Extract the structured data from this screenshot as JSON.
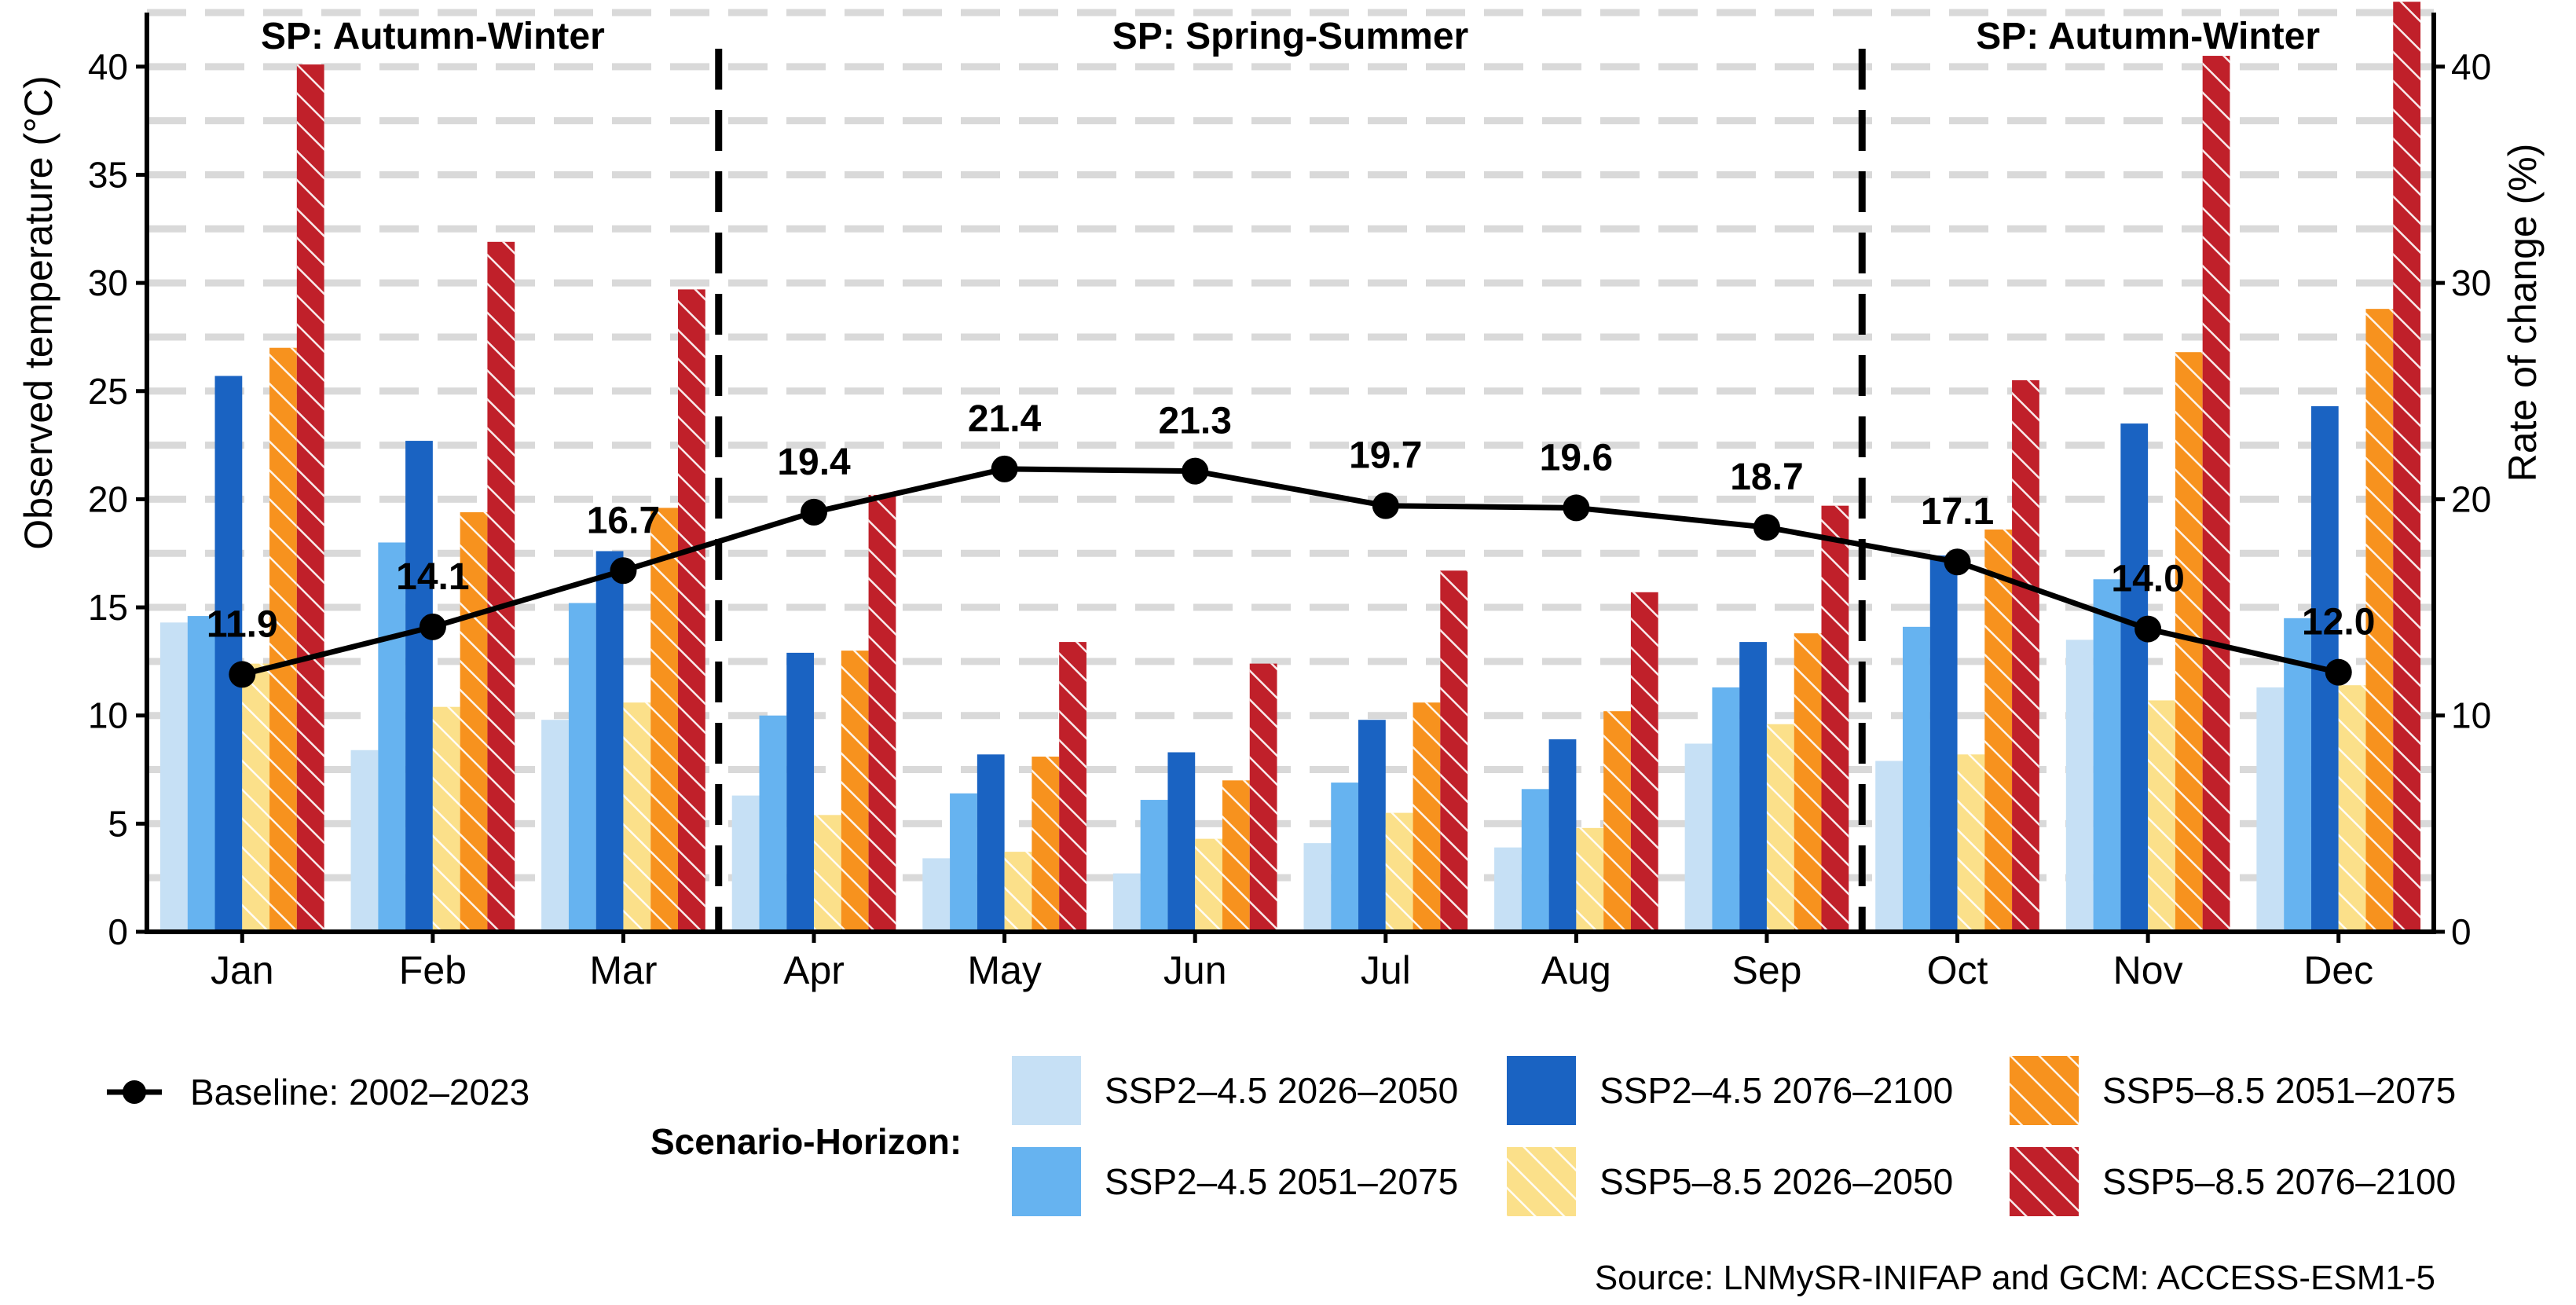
{
  "chart_data": {
    "type": "bar",
    "categories": [
      "Jan",
      "Feb",
      "Mar",
      "Apr",
      "May",
      "Jun",
      "Jul",
      "Aug",
      "Sep",
      "Oct",
      "Nov",
      "Dec"
    ],
    "y_left": {
      "label": "Observed temperature (°C)",
      "ticks": [
        0,
        5,
        10,
        15,
        20,
        25,
        30,
        35,
        40
      ],
      "range": [
        0,
        42.5
      ]
    },
    "y_right": {
      "label": "Rate of change (%)",
      "ticks": [
        0,
        10,
        20,
        30,
        40
      ],
      "range": [
        0,
        42.5
      ]
    },
    "grid": "dashed horizontal",
    "season_labels": [
      {
        "text": "SP: Autumn-Winter",
        "span": [
          "Jan",
          "Mar"
        ]
      },
      {
        "text": "SP: Spring-Summer",
        "span": [
          "Apr",
          "Sep"
        ]
      },
      {
        "text": "SP: Autumn-Winter",
        "span": [
          "Oct",
          "Dec"
        ]
      }
    ],
    "season_dividers_after": [
      "Mar",
      "Sep"
    ],
    "series": [
      {
        "name": "SSP2–4.5 2026–2050",
        "color": "#c6e0f5",
        "hatch": false,
        "axis": "right",
        "values": [
          14.3,
          8.4,
          9.8,
          6.3,
          3.4,
          2.7,
          4.1,
          3.9,
          8.7,
          7.9,
          13.5,
          11.3
        ]
      },
      {
        "name": "SSP2–4.5 2051–2075",
        "color": "#66b3f0",
        "hatch": false,
        "axis": "right",
        "values": [
          14.6,
          18.0,
          15.2,
          10.0,
          6.4,
          6.1,
          6.9,
          6.6,
          11.3,
          14.1,
          16.3,
          14.5
        ]
      },
      {
        "name": "SSP2–4.5 2076–2100",
        "color": "#1a63c2",
        "hatch": false,
        "axis": "right",
        "values": [
          25.7,
          22.7,
          17.6,
          12.9,
          8.2,
          8.3,
          9.8,
          8.9,
          13.4,
          17.4,
          23.5,
          24.3
        ]
      },
      {
        "name": "SSP5–8.5 2026–2050",
        "color": "#fbe08a",
        "hatch": true,
        "axis": "right",
        "values": [
          12.4,
          10.4,
          10.6,
          5.4,
          3.7,
          4.3,
          5.5,
          4.8,
          9.6,
          8.2,
          10.7,
          11.4
        ]
      },
      {
        "name": "SSP5–8.5 2051–2075",
        "color": "#f7921e",
        "hatch": true,
        "axis": "right",
        "values": [
          27.0,
          19.4,
          19.6,
          13.0,
          8.1,
          7.0,
          10.6,
          10.2,
          13.8,
          18.6,
          26.8,
          28.8
        ]
      },
      {
        "name": "SSP5–8.5 2076–2100",
        "color": "#c0202a",
        "hatch": true,
        "axis": "right",
        "values": [
          40.1,
          31.9,
          29.7,
          20.2,
          13.4,
          12.4,
          16.7,
          15.7,
          19.7,
          25.5,
          40.5,
          43.0
        ]
      }
    ],
    "line": {
      "name": "Baseline: 2002–2023",
      "axis": "left",
      "color": "#000000",
      "values": [
        11.9,
        14.1,
        16.7,
        19.4,
        21.4,
        21.3,
        19.7,
        19.6,
        18.7,
        17.1,
        14.0,
        12.0
      ],
      "labels": [
        "11.9",
        "14.1",
        "16.7",
        "19.4",
        "21.4",
        "21.3",
        "19.7",
        "19.6",
        "18.7",
        "17.1",
        "14.0",
        "12.0"
      ]
    },
    "legend": {
      "line_label": "Baseline: 2002–2023",
      "title": "Scenario-Horizon:",
      "items": [
        "SSP2–4.5 2026–2050",
        "SSP2–4.5 2051–2075",
        "SSP2–4.5 2076–2100",
        "SSP5–8.5 2026–2050",
        "SSP5–8.5 2051–2075",
        "SSP5–8.5 2076–2100"
      ],
      "placement": "bottom"
    },
    "source": "Source: LNMySR-INIFAP and GCM: ACCESS-ESM1-5"
  }
}
